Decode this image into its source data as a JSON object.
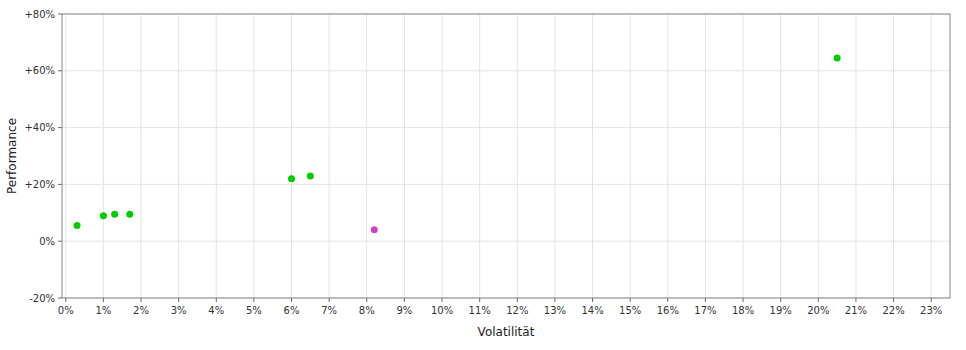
{
  "chart_data": {
    "type": "scatter",
    "xlabel": "Volatilität",
    "ylabel": "Performance",
    "xlim": [
      -0.001,
      0.235
    ],
    "ylim": [
      -0.2,
      0.8
    ],
    "xticks": [
      {
        "value": 0.0,
        "label": "0%"
      },
      {
        "value": 0.01,
        "label": "1%"
      },
      {
        "value": 0.02,
        "label": "2%"
      },
      {
        "value": 0.03,
        "label": "3%"
      },
      {
        "value": 0.04,
        "label": "4%"
      },
      {
        "value": 0.05,
        "label": "5%"
      },
      {
        "value": 0.06,
        "label": "6%"
      },
      {
        "value": 0.07,
        "label": "7%"
      },
      {
        "value": 0.08,
        "label": "8%"
      },
      {
        "value": 0.09,
        "label": "9%"
      },
      {
        "value": 0.1,
        "label": "10%"
      },
      {
        "value": 0.11,
        "label": "11%"
      },
      {
        "value": 0.12,
        "label": "12%"
      },
      {
        "value": 0.13,
        "label": "13%"
      },
      {
        "value": 0.14,
        "label": "14%"
      },
      {
        "value": 0.15,
        "label": "15%"
      },
      {
        "value": 0.16,
        "label": "16%"
      },
      {
        "value": 0.17,
        "label": "17%"
      },
      {
        "value": 0.18,
        "label": "18%"
      },
      {
        "value": 0.19,
        "label": "19%"
      },
      {
        "value": 0.2,
        "label": "20%"
      },
      {
        "value": 0.21,
        "label": "21%"
      },
      {
        "value": 0.22,
        "label": "22%"
      },
      {
        "value": 0.23,
        "label": "23%"
      }
    ],
    "yticks": [
      {
        "value": -0.2,
        "label": "-20%"
      },
      {
        "value": 0.0,
        "label": "0%"
      },
      {
        "value": 0.2,
        "label": "+20%"
      },
      {
        "value": 0.4,
        "label": "+40%"
      },
      {
        "value": 0.6,
        "label": "+60%"
      },
      {
        "value": 0.8,
        "label": "+80%"
      }
    ],
    "grid": true,
    "series": [
      {
        "color": "#00cc00",
        "x": [
          0.003,
          0.01,
          0.013,
          0.017,
          0.06,
          0.065,
          0.205
        ],
        "values": [
          0.055,
          0.09,
          0.095,
          0.095,
          0.22,
          0.23,
          0.645
        ]
      },
      {
        "color": "#cc44cc",
        "x": [
          0.082
        ],
        "values": [
          0.04
        ]
      }
    ]
  }
}
